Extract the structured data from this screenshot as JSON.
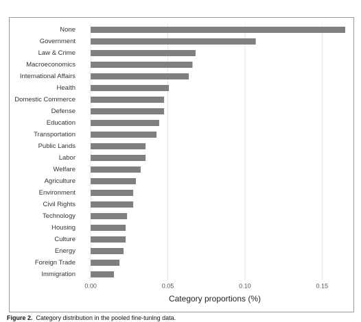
{
  "chart_data": {
    "type": "barh",
    "x_label": "Category proportions (%)",
    "categories": [
      "None",
      "Government",
      "Law & Crime",
      "Macroeconomics",
      "International Affairs",
      "Health",
      "Domestic Commerce",
      "Defense",
      "Education",
      "Transportation",
      "Public Lands",
      "Labor",
      "Welfare",
      "Agriculture",
      "Environment",
      "Civil Rights",
      "Technology",
      "Housing",
      "Culture",
      "Energy",
      "Foreign Trade",
      "Immigration"
    ],
    "values": [
      0.165,
      0.107,
      0.068,
      0.066,
      0.0636,
      0.0507,
      0.0476,
      0.0476,
      0.0444,
      0.0427,
      0.0356,
      0.0356,
      0.0324,
      0.0293,
      0.0276,
      0.0276,
      0.0236,
      0.0227,
      0.0227,
      0.0213,
      0.0187,
      0.0151
    ],
    "color": "#7f7f7f",
    "xlim": [
      -0.0085,
      0.169
    ],
    "xticks": [
      {
        "value": 0,
        "label": "0.00"
      },
      0.05,
      {
        "value": 0.1,
        "label": "0.10"
      },
      0.15
    ],
    "grid": true
  },
  "figure_label": "Figure 2.",
  "caption": "Category distribution in the pooled fine-tuning data."
}
